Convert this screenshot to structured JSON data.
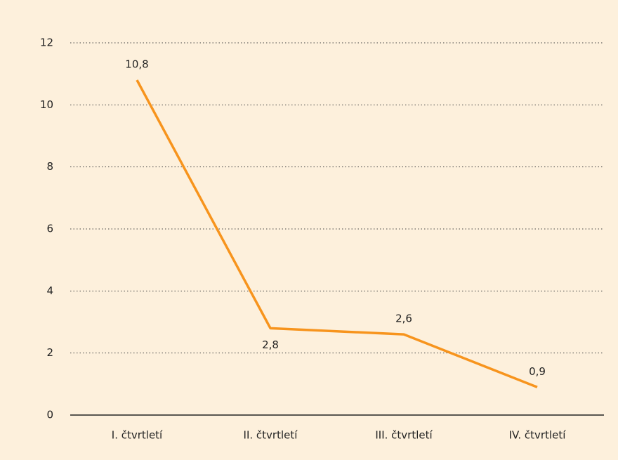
{
  "chart_data": {
    "type": "line",
    "categories": [
      "I. čtvrtletí",
      "II. čtvrtletí",
      "III. čtvrtletí",
      "IV. čtvrtletí"
    ],
    "series": [
      {
        "color": "#f7941d",
        "values": [
          10.8,
          2.8,
          2.6,
          0.9
        ],
        "value_labels": [
          "10,8",
          "2,8",
          "2,6",
          "0,9"
        ]
      }
    ],
    "ylim": [
      0,
      12
    ],
    "yticks": [
      0,
      2,
      4,
      6,
      8,
      10,
      12
    ],
    "grid": true
  }
}
